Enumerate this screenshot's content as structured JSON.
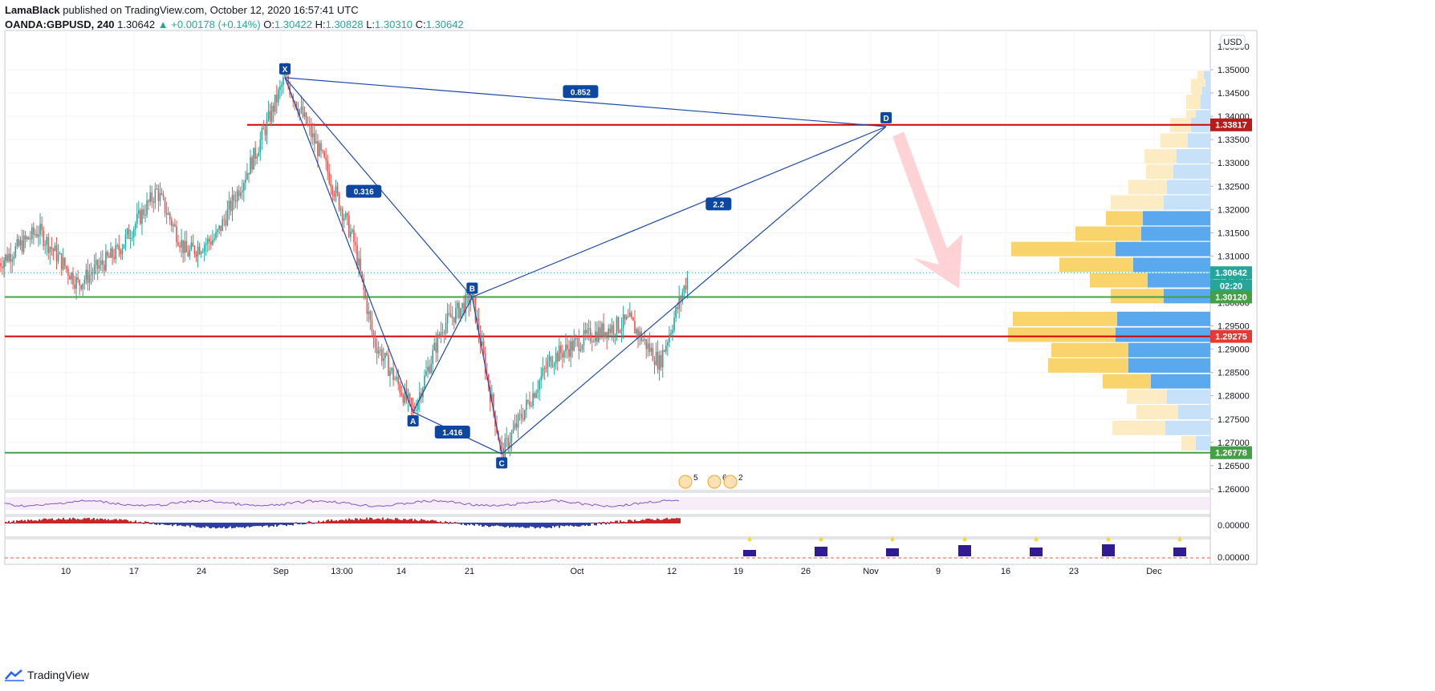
{
  "header": {
    "author": "LamaBlack",
    "published": " published on TradingView.com, October 12, 2020 16:57:41 UTC",
    "symbol": "OANDA:GBPUSD, 240",
    "last": "1.30642",
    "change": "▲ +0.00178 (+0.14%)",
    "o_label": "O:",
    "o": "1.30422",
    "h_label": "H:",
    "h": "1.30828",
    "l_label": "L:",
    "l": "1.30310",
    "c_label": "C:",
    "c": "1.30642"
  },
  "footer": {
    "brand": "TradingView"
  },
  "colors": {
    "up": "#26a69a",
    "down": "#ef5350",
    "pattern": "#2962ff",
    "pattern_label": "#0d47a1",
    "red_line": "#d50000",
    "green_line": "#43a047",
    "vp_up": "#5aa8ee",
    "vp_down": "#f9d36b",
    "arrow": "#ffcdd2",
    "rsi": "#7e57c2"
  },
  "chart_data": {
    "type": "candlestick",
    "currency": "USD",
    "x_tick_labels": [
      "10",
      "17",
      "24",
      "Sep",
      "13:00",
      "14",
      "21",
      "Oct",
      "12",
      "19",
      "26",
      "Nov",
      "9",
      "16",
      "23",
      "Dec"
    ],
    "y_ticks": [
      "1.35000",
      "1.34500",
      "1.34000",
      "1.33500",
      "1.33000",
      "1.32500",
      "1.32000",
      "1.31500",
      "1.31000",
      "1.30500",
      "1.30000",
      "1.29500",
      "1.29000",
      "1.28500",
      "1.28000",
      "1.27500",
      "1.27000",
      "1.26500",
      "1.26000"
    ],
    "y_range": [
      1.2575,
      1.3575
    ],
    "top_partial_tick": "1.35500",
    "price_badges": [
      {
        "label": "1.33817",
        "value": 1.33817,
        "color": "#b71c1c"
      },
      {
        "label": "1.30642",
        "value": 1.30642,
        "color": "#26a69a"
      },
      {
        "label": "02:20",
        "value": 1.3036,
        "color": "#26a69a"
      },
      {
        "label": "1.30120",
        "value": 1.3012,
        "color": "#43a047"
      },
      {
        "label": "1.29275",
        "value": 1.29275,
        "color": "#e53935"
      },
      {
        "label": "1.26778",
        "value": 1.26778,
        "color": "#43a047"
      }
    ],
    "horizontal_lines": [
      {
        "value": 1.33817,
        "color": "#d50000"
      },
      {
        "value": 1.3012,
        "color": "#43a047"
      },
      {
        "value": 1.29275,
        "color": "#d50000"
      },
      {
        "value": 1.26778,
        "color": "#43a047"
      }
    ],
    "harmonic_pattern": {
      "points": [
        {
          "name": "X",
          "date": "2020-09-01",
          "price": 1.3483
        },
        {
          "name": "A",
          "date": "2020-09-14",
          "price": 1.2765
        },
        {
          "name": "B",
          "date": "2020-09-20",
          "price": 1.3012
        },
        {
          "name": "C",
          "date": "2020-09-23",
          "price": 1.2675
        },
        {
          "name": "D",
          "date": "2020-11-01",
          "price": 1.3378
        }
      ],
      "ratios": [
        {
          "label": "0.316",
          "date": "2020-09-09",
          "price": 1.3239
        },
        {
          "label": "1.416",
          "date": "2020-09-18",
          "price": 1.2722
        },
        {
          "label": "2.2",
          "date": "2020-10-15",
          "price": 1.3212
        },
        {
          "label": "0.852",
          "date": "2020-10-01",
          "price": 1.3453
        }
      ]
    },
    "volume_profile": [
      {
        "price": 1.3482,
        "up": 8,
        "down": 8
      },
      {
        "price": 1.3465,
        "up": 6,
        "down": 18
      },
      {
        "price": 1.3448,
        "up": 10,
        "down": 12
      },
      {
        "price": 1.3431,
        "up": 12,
        "down": 18
      },
      {
        "price": 1.3398,
        "up": 18,
        "down": 12
      },
      {
        "price": 1.3381,
        "up": 24,
        "down": 26
      },
      {
        "price": 1.3348,
        "up": 28,
        "down": 34
      },
      {
        "price": 1.3314,
        "up": 42,
        "down": 40
      },
      {
        "price": 1.3281,
        "up": 46,
        "down": 34
      },
      {
        "price": 1.3248,
        "up": 54,
        "down": 48
      },
      {
        "price": 1.3215,
        "up": 58,
        "down": 66
      },
      {
        "price": 1.3181,
        "up": 84,
        "down": 46
      },
      {
        "price": 1.3148,
        "up": 86,
        "down": 82
      },
      {
        "price": 1.3115,
        "up": 118,
        "down": 130
      },
      {
        "price": 1.3081,
        "up": 96,
        "down": 92
      },
      {
        "price": 1.3048,
        "up": 78,
        "down": 72
      },
      {
        "price": 1.3014,
        "up": 58,
        "down": 66
      },
      {
        "price": 1.2965,
        "up": 116,
        "down": 130
      },
      {
        "price": 1.2931,
        "up": 118,
        "down": 134
      },
      {
        "price": 1.2898,
        "up": 102,
        "down": 96
      },
      {
        "price": 1.2865,
        "up": 102,
        "down": 100
      },
      {
        "price": 1.2831,
        "up": 74,
        "down": 60
      },
      {
        "price": 1.2798,
        "up": 54,
        "down": 50
      },
      {
        "price": 1.2765,
        "up": 40,
        "down": 52
      },
      {
        "price": 1.2731,
        "up": 56,
        "down": 66
      },
      {
        "price": 1.2698,
        "up": 18,
        "down": 18
      }
    ],
    "events": [
      {
        "label": "5"
      },
      {
        "label": "6"
      },
      {
        "label": "2"
      }
    ],
    "indicator_scales": [
      "0.00000",
      "0.00000"
    ],
    "forecast_arrow": {
      "direction": "down",
      "from_date": "2020-11-01",
      "to_date": "2020-11-16"
    }
  }
}
